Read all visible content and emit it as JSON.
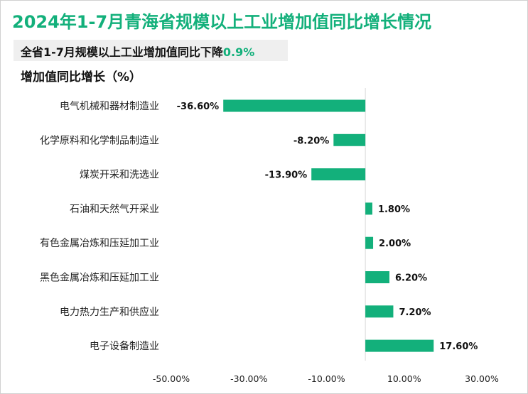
{
  "title": "2024年1-7月青海省规模以上工业增加值同比增长情况",
  "subtitle": {
    "text": "全省1-7月规模以上工业增加值同比下降",
    "highlight": "0.9%"
  },
  "colors": {
    "accent": "#13b07b",
    "bar": "#13b07b"
  },
  "chart_data": {
    "type": "bar",
    "orientation": "horizontal",
    "ylabel": "增加值同比增长（%）",
    "categories": [
      "电气机械和器材制造业",
      "化学原料和化学制品制造业",
      "煤炭开采和洗选业",
      "石油和天然气开采业",
      "有色金属冶炼和压延加工业",
      "黑色金属冶炼和压延加工业",
      "电力热力生产和供应业",
      "电子设备制造业"
    ],
    "values": [
      -36.6,
      -8.2,
      -13.9,
      1.8,
      2.0,
      6.2,
      7.2,
      17.6
    ],
    "value_labels": [
      "-36.60%",
      "-8.20%",
      "-13.90%",
      "1.80%",
      "2.00%",
      "6.20%",
      "7.20%",
      "17.60%"
    ],
    "xlim": [
      -50,
      30
    ],
    "xticks": [
      -50,
      -30,
      -10,
      10,
      30
    ],
    "xtick_labels": [
      "-50.00%",
      "-30.00%",
      "-10.00%",
      "10.00%",
      "30.00%"
    ],
    "grid": false,
    "legend": false
  }
}
